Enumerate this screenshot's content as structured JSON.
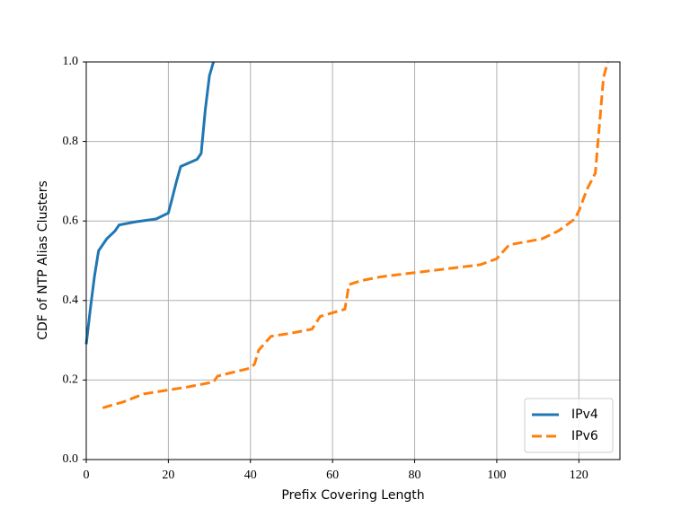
{
  "chart_data": {
    "type": "line",
    "xlabel": "Prefix Covering Length",
    "ylabel": "CDF of NTP Alias Clusters",
    "xlim": [
      0,
      130
    ],
    "ylim": [
      0,
      1
    ],
    "xticks": [
      0,
      20,
      40,
      60,
      80,
      100,
      120
    ],
    "yticks": [
      {
        "value": 0,
        "label": "0.0"
      },
      0.2,
      0.4,
      0.6,
      0.8,
      {
        "value": 1,
        "label": "1.0"
      }
    ],
    "grid": true,
    "legend": "lower right",
    "series": [
      {
        "name": "IPv4",
        "color": "#1f77b4",
        "linestyle": "solid",
        "x": [
          0,
          1,
          2,
          3,
          5,
          7,
          8,
          12,
          17,
          20,
          21,
          22,
          23,
          27,
          28,
          29,
          30,
          31
        ],
        "values": [
          0.29,
          0.38,
          0.46,
          0.525,
          0.555,
          0.575,
          0.59,
          0.598,
          0.605,
          0.62,
          0.66,
          0.7,
          0.737,
          0.755,
          0.77,
          0.88,
          0.965,
          1.0
        ]
      },
      {
        "name": "IPv6",
        "color": "#ff7f0e",
        "linestyle": "dashed",
        "x": [
          4,
          9,
          14,
          20,
          25,
          31,
          32,
          36,
          40,
          41,
          42,
          45,
          50,
          55,
          57,
          63,
          64,
          67,
          72,
          80,
          88,
          96,
          100,
          103,
          111,
          115,
          119,
          120,
          122,
          124,
          126,
          127
        ],
        "values": [
          0.13,
          0.145,
          0.165,
          0.175,
          0.183,
          0.195,
          0.21,
          0.22,
          0.23,
          0.24,
          0.275,
          0.31,
          0.318,
          0.328,
          0.36,
          0.378,
          0.44,
          0.45,
          0.46,
          0.47,
          0.48,
          0.49,
          0.505,
          0.54,
          0.555,
          0.575,
          0.605,
          0.625,
          0.68,
          0.72,
          0.96,
          1.0
        ]
      }
    ]
  }
}
